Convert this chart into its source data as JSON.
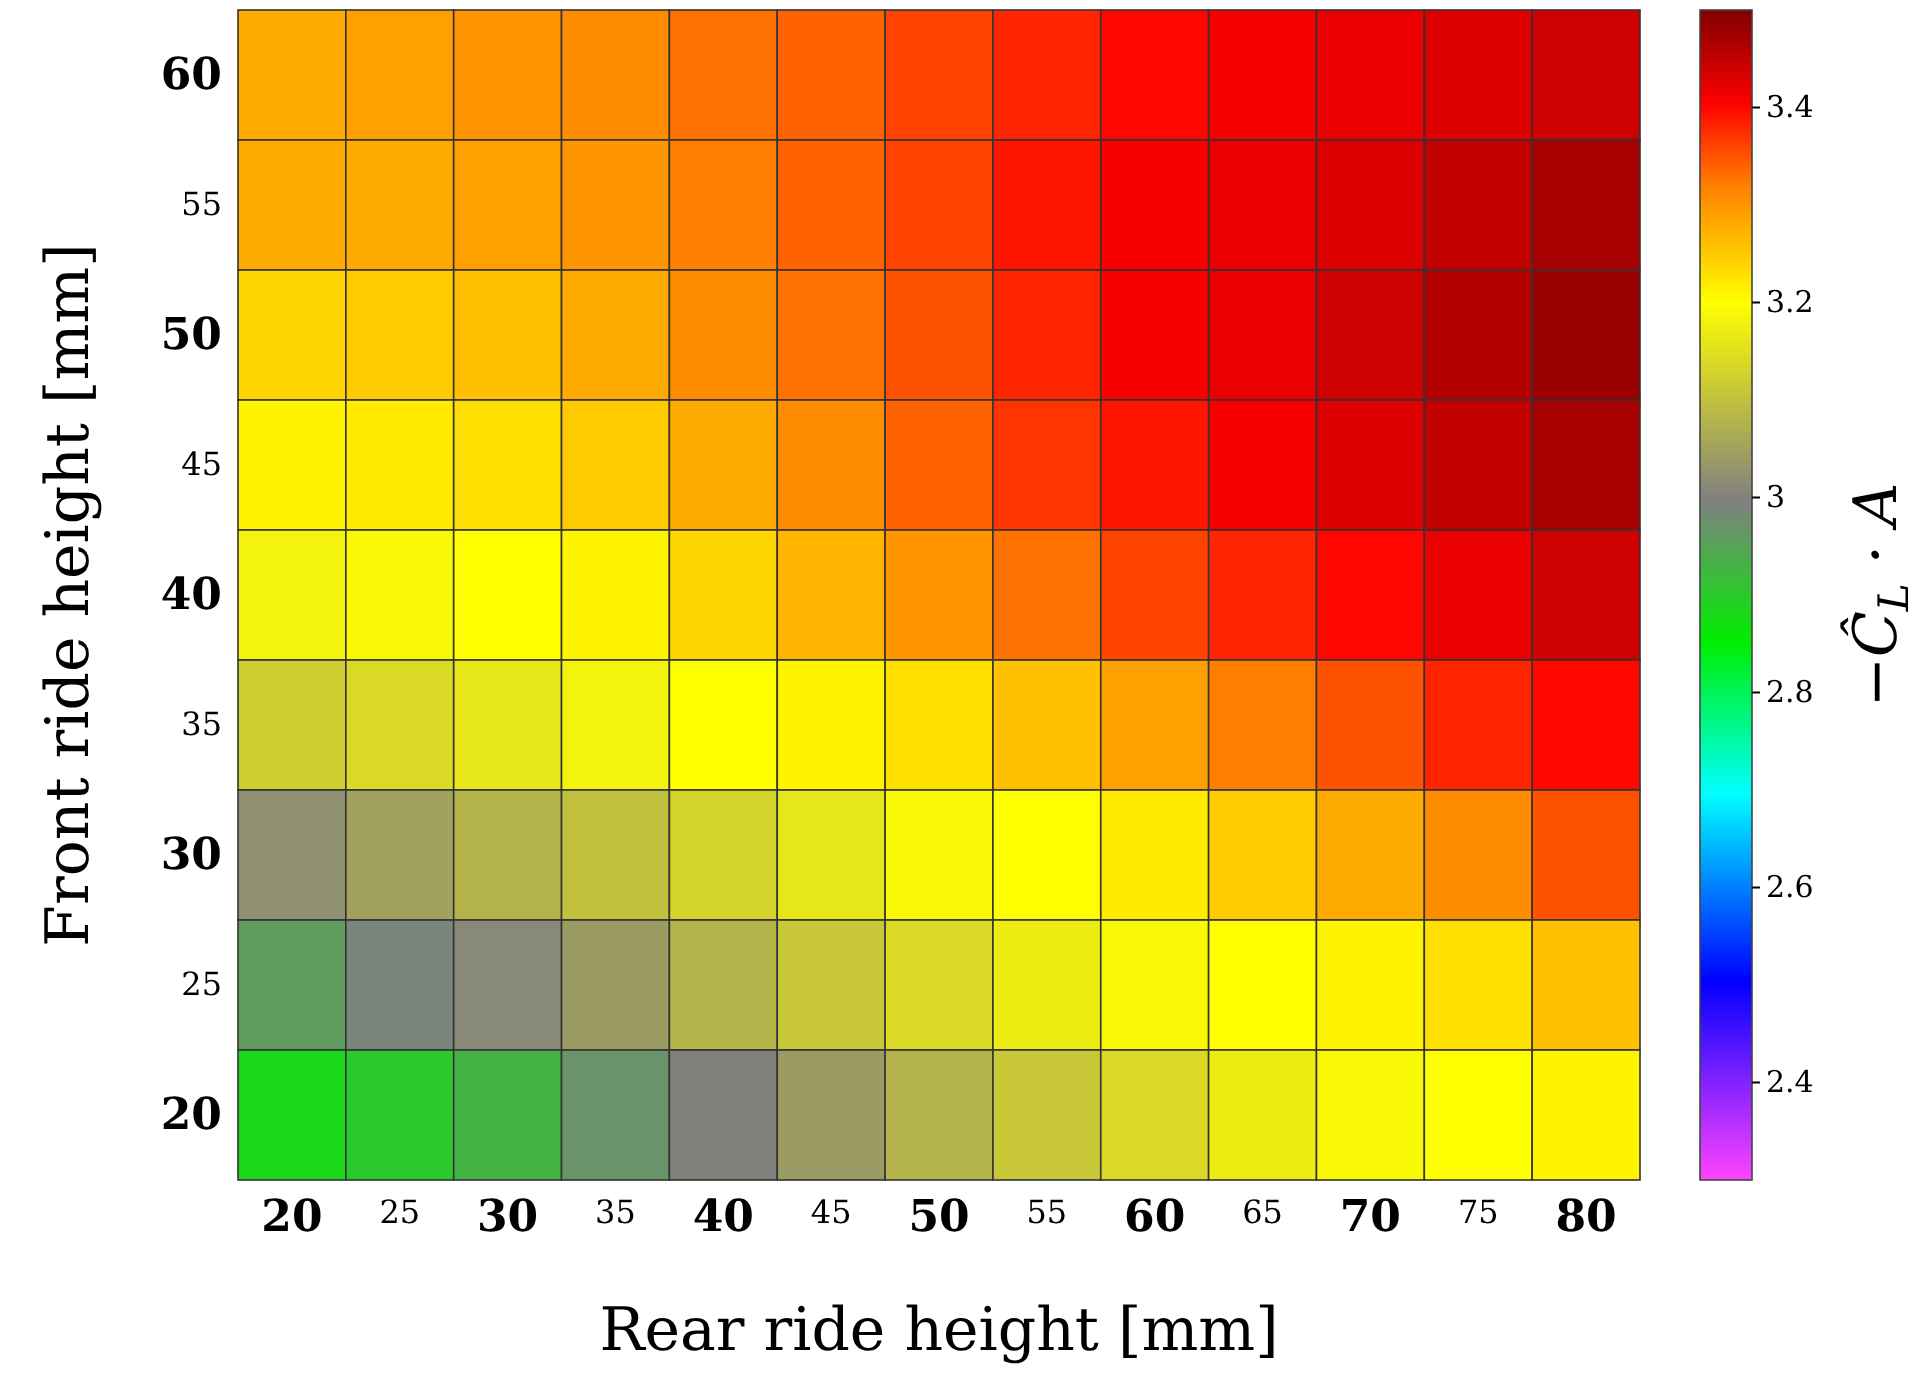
{
  "chart_data": {
    "type": "heatmap",
    "xlabel": "Rear ride height [mm]",
    "ylabel": "Front ride height [mm]",
    "clabel": "−Ĉ$_{L}$ · A",
    "categories": [
      "20",
      "25",
      "30",
      "35",
      "40",
      "45",
      "50",
      "55",
      "60",
      "65",
      "70",
      "75",
      "80"
    ],
    "y_categories": [
      "60",
      "55",
      "50",
      "45",
      "40",
      "35",
      "30",
      "25",
      "20"
    ],
    "cells": [
      [
        3.28,
        3.29,
        3.3,
        3.31,
        3.33,
        3.34,
        3.36,
        3.38,
        3.4,
        3.41,
        3.42,
        3.43,
        3.44
      ],
      [
        3.28,
        3.28,
        3.29,
        3.3,
        3.32,
        3.34,
        3.36,
        3.39,
        3.41,
        3.42,
        3.43,
        3.45,
        3.47
      ],
      [
        3.24,
        3.25,
        3.26,
        3.28,
        3.31,
        3.33,
        3.35,
        3.38,
        3.41,
        3.42,
        3.44,
        3.46,
        3.48
      ],
      [
        3.21,
        3.22,
        3.23,
        3.25,
        3.28,
        3.31,
        3.34,
        3.37,
        3.39,
        3.41,
        3.43,
        3.45,
        3.47
      ],
      [
        3.18,
        3.19,
        3.2,
        3.21,
        3.24,
        3.27,
        3.3,
        3.33,
        3.36,
        3.38,
        3.4,
        3.42,
        3.44
      ],
      [
        3.12,
        3.14,
        3.16,
        3.18,
        3.2,
        3.21,
        3.23,
        3.26,
        3.29,
        3.32,
        3.35,
        3.38,
        3.4
      ],
      [
        3.02,
        3.05,
        3.08,
        3.1,
        3.13,
        3.16,
        3.19,
        3.2,
        3.22,
        3.25,
        3.28,
        3.31,
        3.35
      ],
      [
        2.96,
        2.99,
        3.01,
        3.04,
        3.08,
        3.11,
        3.14,
        3.17,
        3.19,
        3.2,
        3.21,
        3.23,
        3.26
      ],
      [
        2.88,
        2.9,
        2.93,
        2.97,
        3.0,
        3.04,
        3.08,
        3.11,
        3.14,
        3.17,
        3.19,
        3.2,
        3.21
      ]
    ],
    "clim": [
      2.3,
      3.5
    ],
    "cticks": [
      2.4,
      2.6,
      2.8,
      3,
      3.2,
      3.4
    ]
  }
}
